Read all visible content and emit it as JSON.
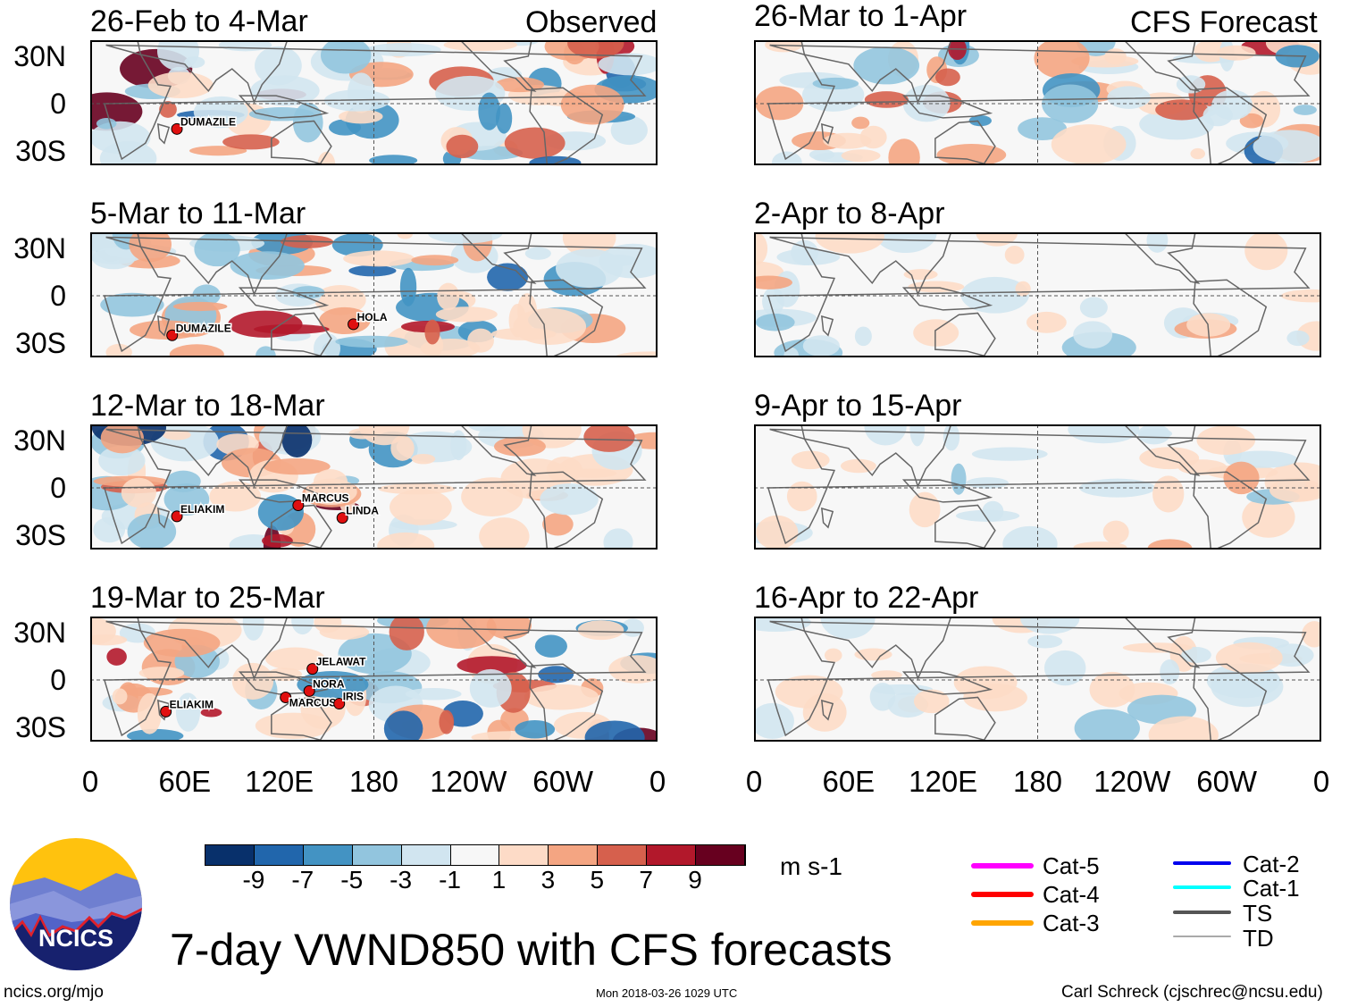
{
  "headers": {
    "observed": "Observed",
    "forecast": "CFS Forecast"
  },
  "panels": [
    {
      "title": "26-Feb to 4-Mar",
      "col": 0,
      "row": 0,
      "intensity": 1.0,
      "seed": 3,
      "storms": [
        {
          "name": "DUMAZILE",
          "lon": 55,
          "lat": -16
        }
      ]
    },
    {
      "title": "5-Mar to 11-Mar",
      "col": 0,
      "row": 1,
      "intensity": 1.0,
      "seed": 11,
      "storms": [
        {
          "name": "DUMAZILE",
          "lon": 52,
          "lat": -25
        },
        {
          "name": "HOLA",
          "lon": 167,
          "lat": -18
        }
      ]
    },
    {
      "title": "12-Mar to 18-Mar",
      "col": 0,
      "row": 2,
      "intensity": 1.0,
      "seed": 19,
      "storms": [
        {
          "name": "ELIAKIM",
          "lon": 55,
          "lat": -18
        },
        {
          "name": "MARCUS",
          "lon": 132,
          "lat": -11
        },
        {
          "name": "LINDA",
          "lon": 160,
          "lat": -19
        }
      ]
    },
    {
      "title": "19-Mar to 25-Mar",
      "col": 0,
      "row": 3,
      "intensity": 1.0,
      "seed": 27,
      "storms": [
        {
          "name": "JELAWAT",
          "lon": 141,
          "lat": 7
        },
        {
          "name": "NORA",
          "lon": 139,
          "lat": -7
        },
        {
          "name": "MARCUS",
          "lon": 124,
          "lat": -11
        },
        {
          "name": "IRIS",
          "lon": 158,
          "lat": -15
        },
        {
          "name": "ELIAKIM",
          "lon": 48,
          "lat": -20
        }
      ]
    },
    {
      "title": "26-Mar to 1-Apr",
      "col": 1,
      "row": 0,
      "intensity": 0.9,
      "seed": 35,
      "storms": []
    },
    {
      "title": "2-Apr to 8-Apr",
      "col": 1,
      "row": 1,
      "intensity": 0.35,
      "seed": 43,
      "storms": []
    },
    {
      "title": "9-Apr to 15-Apr",
      "col": 1,
      "row": 2,
      "intensity": 0.3,
      "seed": 51,
      "storms": []
    },
    {
      "title": "16-Apr to 22-Apr",
      "col": 1,
      "row": 3,
      "intensity": 0.3,
      "seed": 59,
      "storms": []
    }
  ],
  "lat_labels": [
    "30N",
    "0",
    "30S"
  ],
  "lon_labels": [
    "0",
    "60E",
    "120E",
    "180",
    "120W",
    "60W",
    "0"
  ],
  "colorbar": {
    "colors": [
      "#08306b",
      "#2166ac",
      "#4393c3",
      "#92c5de",
      "#d1e5f0",
      "#f7f7f7",
      "#fddbc7",
      "#f4a582",
      "#d6604d",
      "#b2182b",
      "#67001f"
    ],
    "labels": [
      "-9",
      "-7",
      "-5",
      "-3",
      "-1",
      "1",
      "3",
      "5",
      "7",
      "9"
    ],
    "units": "m s-1"
  },
  "legend": [
    {
      "label": "Cat-5",
      "color": "#ff00ff"
    },
    {
      "label": "Cat-4",
      "color": "#ff0000"
    },
    {
      "label": "Cat-3",
      "color": "#ffa500"
    },
    {
      "label": "Cat-2",
      "color": "#0000ee"
    },
    {
      "label": "Cat-1",
      "color": "#00ffff"
    },
    {
      "label": "TS",
      "color": "#555555"
    },
    {
      "label": "TD",
      "color": "#aaaaaa"
    }
  ],
  "logo": {
    "text": "NCICS"
  },
  "footer": {
    "title": "7-day VWND850 with CFS forecasts",
    "url": "ncics.org/mjo",
    "timestamp": "Mon 2018-03-26 1029 UTC",
    "author": "Carl Schreck (cjschrec@ncsu.edu)"
  }
}
